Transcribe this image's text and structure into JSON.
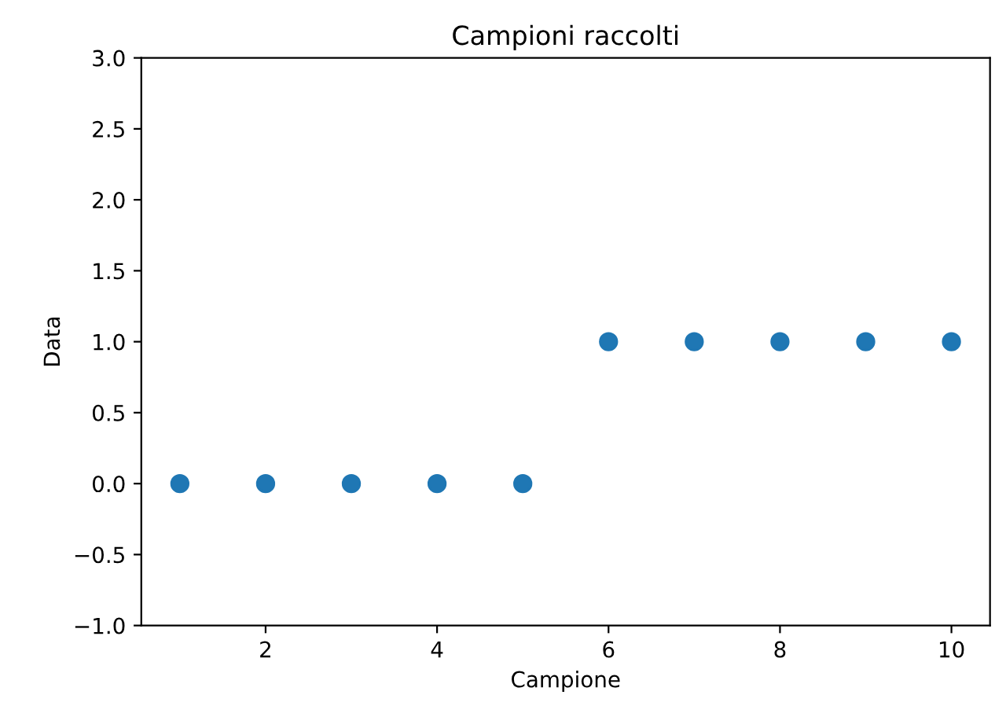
{
  "chart_data": {
    "type": "scatter",
    "title": "Campioni raccolti",
    "xlabel": "Campione",
    "ylabel": "Data",
    "x": [
      1,
      2,
      3,
      4,
      5,
      6,
      7,
      8,
      9,
      10
    ],
    "series": [
      {
        "color": "#1f77b4",
        "values": [
          0,
          0,
          0,
          0,
          0,
          1,
          1,
          1,
          1,
          1
        ]
      }
    ],
    "marker": "circle",
    "grid": false,
    "xlim": [
      0.55,
      10.45
    ],
    "xticks": [
      2,
      4,
      6,
      8,
      10
    ],
    "ylim": [
      -1,
      3
    ],
    "yticks": [
      {
        "value": -1,
        "label": "−1.0"
      },
      {
        "value": -0.5,
        "label": "−0.5"
      },
      {
        "value": 0,
        "label": "0.0"
      },
      {
        "value": 0.5,
        "label": "0.5"
      },
      {
        "value": 1,
        "label": "1.0"
      },
      {
        "value": 1.5,
        "label": "1.5"
      },
      {
        "value": 2,
        "label": "2.0"
      },
      {
        "value": 2.5,
        "label": "2.5"
      },
      {
        "value": 3,
        "label": "3.0"
      }
    ]
  }
}
